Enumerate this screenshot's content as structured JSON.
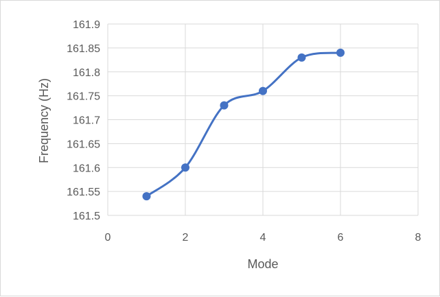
{
  "chart_data": {
    "type": "line",
    "title": "",
    "xlabel": "Mode",
    "ylabel": "Frequency (Hz)",
    "xlim": [
      0,
      8
    ],
    "ylim": [
      161.5,
      161.9
    ],
    "x_ticks": [
      0,
      2,
      4,
      6,
      8
    ],
    "y_ticks": [
      161.5,
      161.55,
      161.6,
      161.65,
      161.7,
      161.75,
      161.8,
      161.85,
      161.9
    ],
    "x_tick_labels": [
      "0",
      "2",
      "4",
      "6",
      "8"
    ],
    "y_tick_labels": [
      "161.5",
      "161.55",
      "161.6",
      "161.65",
      "161.7",
      "161.75",
      "161.8",
      "161.85",
      "161.9"
    ],
    "grid": true,
    "smooth": true,
    "legend": "none",
    "series": [
      {
        "x": [
          1,
          2,
          3,
          4,
          5,
          6
        ],
        "values": [
          161.54,
          161.6,
          161.73,
          161.76,
          161.83,
          161.84
        ],
        "color": "#4472c4"
      }
    ]
  }
}
